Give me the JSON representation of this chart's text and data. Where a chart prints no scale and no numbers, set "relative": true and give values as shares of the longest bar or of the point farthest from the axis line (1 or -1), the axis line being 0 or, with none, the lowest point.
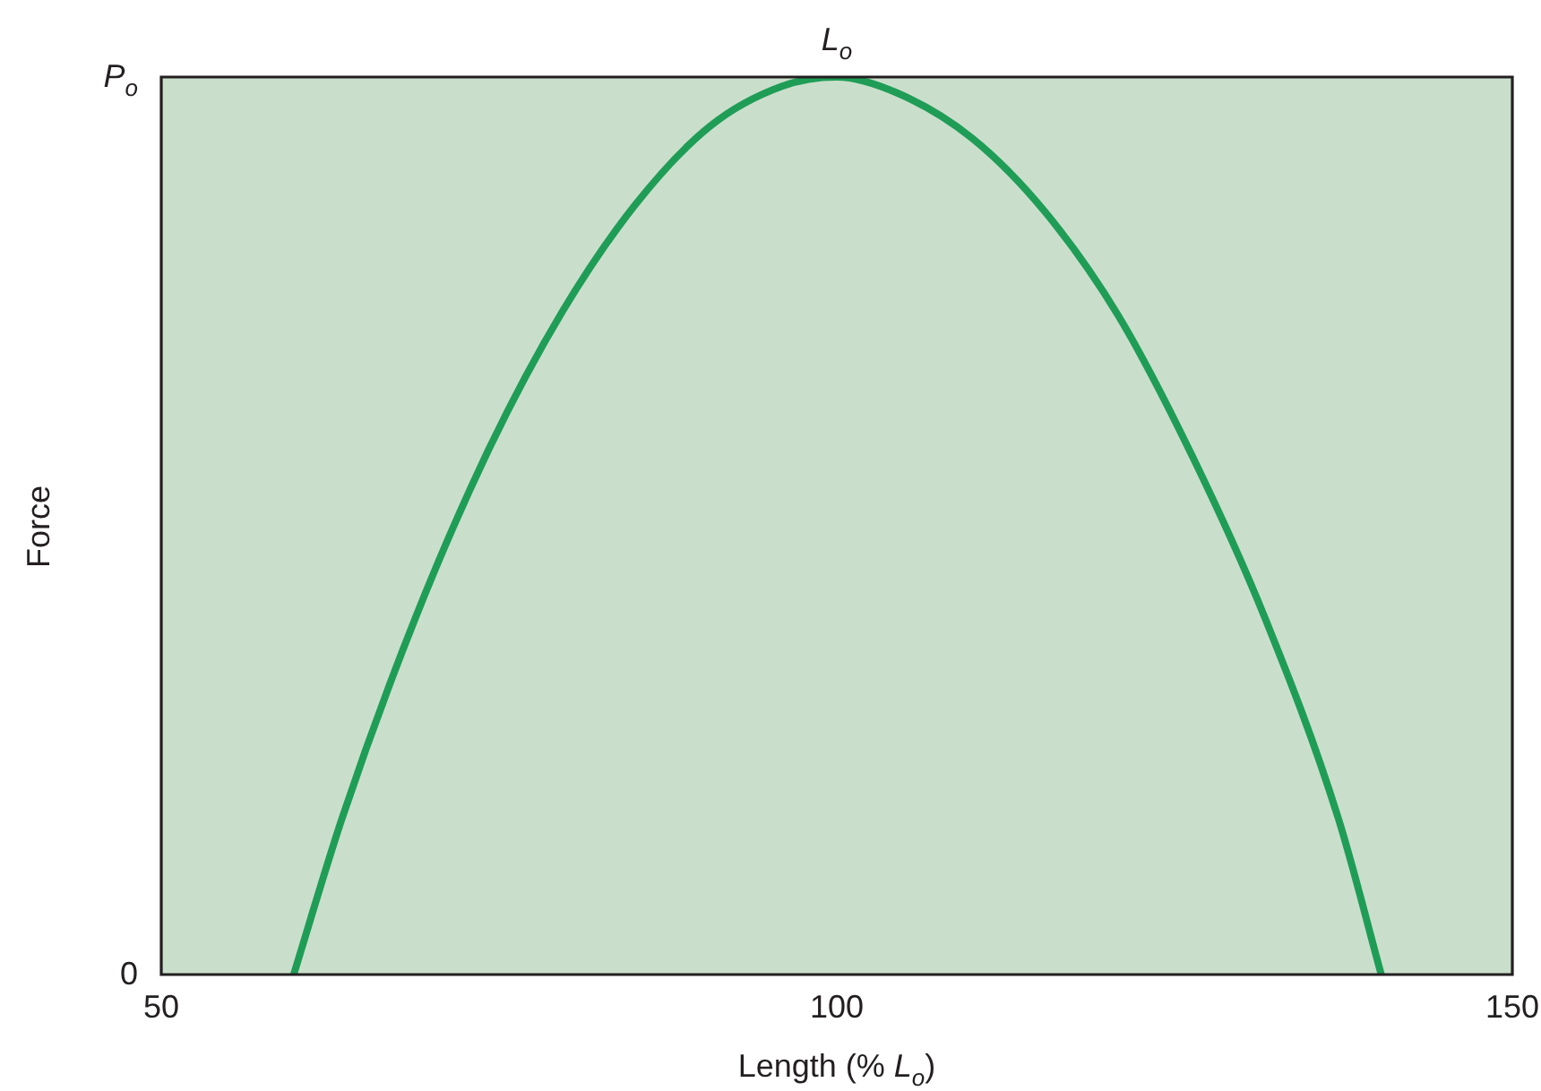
{
  "chart_data": {
    "type": "line",
    "relative": true,
    "xlabel": "Length (% L$_{o}$)",
    "ylabel": "Force",
    "x": [
      59.8,
      63.4,
      68.8,
      74.3,
      79.7,
      85.1,
      90.6,
      96,
      100,
      104.5,
      110,
      115.4,
      120.8,
      126.3,
      131.7,
      137.1,
      140.3
    ],
    "series": [
      {
        "color": "#1f9d57",
        "values": [
          0,
          0.175,
          0.397,
          0.587,
          0.739,
          0.858,
          0.945,
          0.99,
          1,
          0.982,
          0.932,
          0.85,
          0.735,
          0.578,
          0.397,
          0.175,
          0
        ]
      }
    ],
    "xlim": [
      50,
      150
    ],
    "xticks": [
      50,
      100,
      150
    ],
    "annotations": [
      {
        "text": "L$_{o}$",
        "x": 100,
        "y": 1
      },
      "P$_{o}$",
      "0"
    ],
    "marker": "none",
    "line_style": "solid"
  }
}
